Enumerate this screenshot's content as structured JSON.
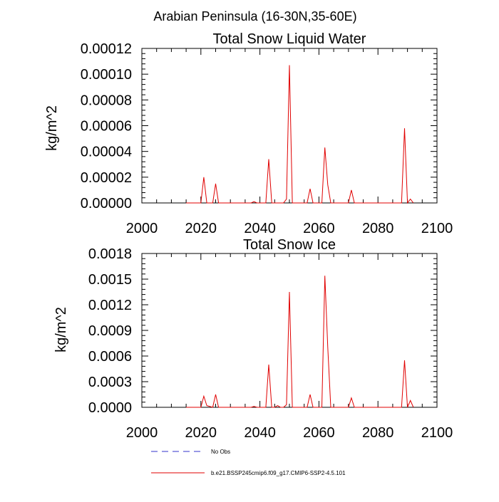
{
  "figure": {
    "title": "Arabian Peninsula (16-30N,35-60E)",
    "legend": [
      {
        "label": "No Obs",
        "color": "#3333cc",
        "style": "dashed"
      },
      {
        "label": "b.e21.BSSP245cmip6.f09_g17.CMIP6-SSP2-4.5.101",
        "color": "#e00000",
        "style": "solid"
      }
    ]
  },
  "chart_data": [
    {
      "type": "line",
      "title": "Total Snow Liquid Water",
      "xlabel": "",
      "ylabel": "kg/m^2",
      "xlim": [
        2000,
        2100
      ],
      "ylim": [
        0,
        0.00012
      ],
      "xticks": [
        "2000",
        "2020",
        "2040",
        "2060",
        "2080",
        "2100"
      ],
      "yticks": [
        "0.00000",
        "0.00002",
        "0.00004",
        "0.00006",
        "0.00008",
        "0.00010",
        "0.00012"
      ],
      "grid": false,
      "series": [
        {
          "name": "b.e21.BSSP245cmip6.f09_g17.CMIP6-SSP2-4.5.101",
          "color": "#e00000",
          "x": [
            2015,
            2020,
            2021,
            2022,
            2024,
            2025,
            2026,
            2037,
            2038,
            2039,
            2042,
            2043,
            2044,
            2048,
            2049,
            2050,
            2051,
            2056,
            2057,
            2058,
            2061,
            2062,
            2063,
            2064,
            2070,
            2071,
            2072,
            2088,
            2089,
            2090,
            2091,
            2092
          ],
          "y": [
            0,
            0,
            2e-05,
            0,
            0,
            1.5e-05,
            0,
            0,
            1e-06,
            0,
            0,
            3.4e-05,
            0,
            0,
            3e-06,
            0.000107,
            0,
            0,
            1.1e-05,
            0,
            0,
            4.3e-05,
            1.4e-05,
            0,
            0,
            1e-05,
            0,
            0,
            5.8e-05,
            0,
            3e-06,
            0
          ]
        }
      ]
    },
    {
      "type": "line",
      "title": "Total Snow Ice",
      "xlabel": "",
      "ylabel": "kg/m^2",
      "xlim": [
        2000,
        2100
      ],
      "ylim": [
        0,
        0.0018
      ],
      "xticks": [
        "2000",
        "2020",
        "2040",
        "2060",
        "2080",
        "2100"
      ],
      "yticks": [
        "0.0000",
        "0.0003",
        "0.0006",
        "0.0009",
        "0.0012",
        "0.0015",
        "0.0018"
      ],
      "grid": false,
      "series": [
        {
          "name": "b.e21.BSSP245cmip6.f09_g17.CMIP6-SSP2-4.5.101",
          "color": "#e00000",
          "x": [
            2015,
            2020,
            2021,
            2022,
            2024,
            2025,
            2026,
            2037,
            2038,
            2039,
            2042,
            2043,
            2044,
            2045,
            2046,
            2047,
            2048,
            2049,
            2050,
            2051,
            2056,
            2057,
            2058,
            2061,
            2062,
            2063,
            2064,
            2070,
            2071,
            2072,
            2088,
            2089,
            2090,
            2091,
            2092
          ],
          "y": [
            0,
            0,
            0.00013,
            2e-05,
            0,
            0.00015,
            0,
            0,
            1e-05,
            0,
            0,
            0.0005,
            0,
            0,
            2e-05,
            0,
            0,
            3e-05,
            0.00135,
            0,
            0,
            0.00015,
            0,
            0,
            0.00154,
            0.0007,
            0,
            0,
            0.00011,
            0,
            0,
            0.00055,
            0,
            8e-05,
            0
          ]
        }
      ]
    }
  ]
}
